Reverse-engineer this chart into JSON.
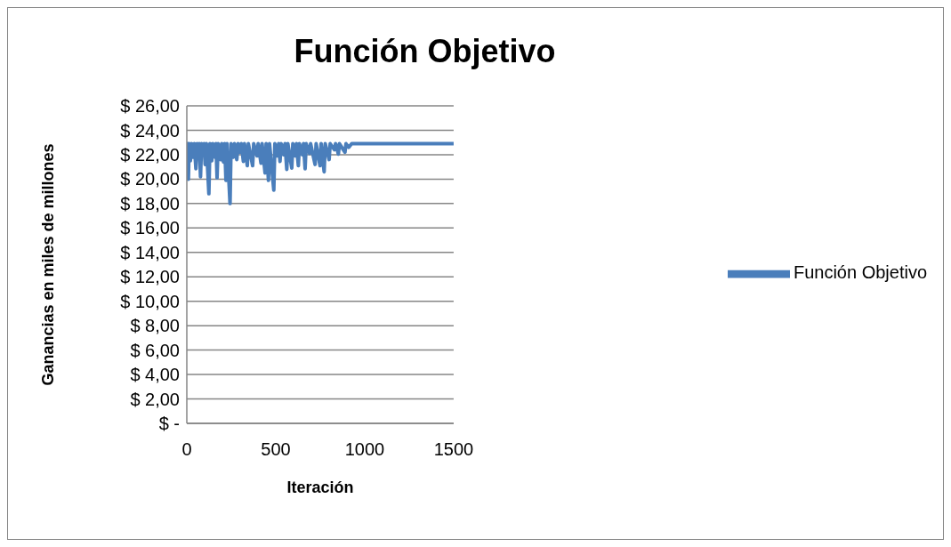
{
  "chart_data": {
    "type": "line",
    "title": "Función Objetivo",
    "xlabel": "Iteración",
    "ylabel": "Ganancias en miles de millones",
    "x": [
      0,
      5,
      9,
      13,
      20,
      26,
      35,
      42,
      51,
      58,
      65,
      70,
      77,
      83,
      92,
      97,
      103,
      110,
      124,
      130,
      140,
      146,
      158,
      164,
      170,
      176,
      190,
      196,
      206,
      213,
      220,
      226,
      243,
      249,
      262,
      268,
      281,
      288,
      300,
      306,
      318,
      324,
      340,
      346,
      370,
      376,
      395,
      401,
      417,
      423,
      440,
      446,
      459,
      465,
      489,
      495,
      510,
      516,
      524,
      530,
      545,
      552,
      562,
      568,
      590,
      596,
      610,
      616,
      627,
      633,
      650,
      656,
      665,
      671,
      690,
      696,
      721,
      727,
      749,
      755,
      772,
      778,
      800,
      806,
      830,
      836,
      852,
      858,
      889,
      895,
      910,
      927,
      1200,
      1500
    ],
    "series": [
      {
        "name": "Función Objetivo",
        "color": "#4a7ebb",
        "values": [
          22.9,
          22.9,
          20.0,
          22.9,
          21.5,
          22.9,
          21.8,
          22.9,
          20.85,
          22.9,
          22.0,
          22.9,
          20.2,
          22.9,
          22.1,
          22.9,
          21.2,
          22.9,
          18.8,
          22.9,
          21.5,
          22.9,
          21.8,
          22.9,
          20.1,
          22.9,
          21.6,
          22.9,
          21.4,
          22.9,
          19.9,
          22.9,
          18.0,
          22.9,
          21.8,
          22.9,
          21.6,
          22.9,
          22.2,
          22.9,
          21.45,
          22.9,
          21.1,
          22.9,
          21.1,
          22.9,
          21.9,
          22.9,
          21.3,
          22.9,
          20.5,
          22.9,
          19.9,
          22.9,
          19.1,
          22.9,
          21.9,
          22.9,
          21.45,
          22.9,
          22.0,
          22.9,
          20.8,
          22.9,
          20.9,
          22.9,
          21.9,
          22.9,
          21.1,
          22.9,
          22.0,
          22.9,
          20.85,
          22.9,
          22.1,
          22.9,
          21.2,
          22.9,
          21.1,
          22.9,
          20.6,
          22.9,
          21.6,
          22.9,
          22.4,
          22.9,
          22.05,
          22.9,
          22.2,
          22.9,
          22.6,
          22.9,
          22.9,
          22.9
        ]
      }
    ],
    "xlim": [
      0,
      1500
    ],
    "xticks": [
      0,
      500,
      1000,
      1500
    ],
    "ylim": [
      0,
      26
    ],
    "yticks": [
      {
        "value": 0,
        "label": "$ -"
      },
      {
        "value": 2,
        "label": "$ 2,00"
      },
      {
        "value": 4,
        "label": "$ 4,00"
      },
      {
        "value": 6,
        "label": "$ 6,00"
      },
      {
        "value": 8,
        "label": "$ 8,00"
      },
      {
        "value": 10,
        "label": "$ 10,00"
      },
      {
        "value": 12,
        "label": "$ 12,00"
      },
      {
        "value": 14,
        "label": "$ 14,00"
      },
      {
        "value": 16,
        "label": "$ 16,00"
      },
      {
        "value": 18,
        "label": "$ 18,00"
      },
      {
        "value": 20,
        "label": "$ 20,00"
      },
      {
        "value": 22,
        "label": "$ 22,00"
      },
      {
        "value": 24,
        "label": "$ 24,00"
      },
      {
        "value": 26,
        "label": "$ 26,00"
      }
    ],
    "grid": "y",
    "legend": "right"
  }
}
